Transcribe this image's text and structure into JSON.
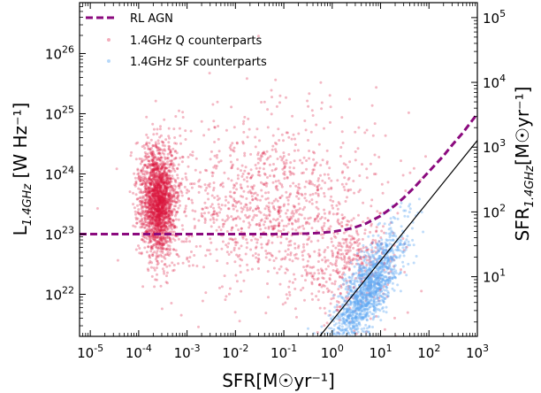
{
  "chart_data": {
    "type": "scatter",
    "xlabel": "SFR[M☉yr⁻¹]",
    "ylabel_main": "L",
    "ylabel_sub": "1.4GHz",
    "ylabel_units": " [W Hz⁻¹]",
    "y2label_main": "SFR",
    "y2label_sub": "1.4GHz",
    "y2label_units": "[M☉yr⁻¹]",
    "x_scale": "log",
    "y_scale": "log",
    "xlim": [
      6e-06,
      1000
    ],
    "ylim": [
      2e+21,
      7e+26
    ],
    "y2lim": [
      1.2,
      170000
    ],
    "grid": false,
    "legend_position": "top-left",
    "colors": {
      "agn": "#8b0a7e",
      "quiescent": "#dc143c",
      "star_forming": "#5ea8f2",
      "relation": "#000000"
    },
    "x_ticks": [
      {
        "value": 1e-05,
        "base": "10",
        "exp": "-5"
      },
      {
        "value": 0.0001,
        "base": "10",
        "exp": "-4"
      },
      {
        "value": 0.001,
        "base": "10",
        "exp": "-3"
      },
      {
        "value": 0.01,
        "base": "10",
        "exp": "-2"
      },
      {
        "value": 0.1,
        "base": "10",
        "exp": "-1"
      },
      {
        "value": 1.0,
        "base": "10",
        "exp": "0"
      },
      {
        "value": 10.0,
        "base": "10",
        "exp": "1"
      },
      {
        "value": 100.0,
        "base": "10",
        "exp": "2"
      },
      {
        "value": 1000.0,
        "base": "10",
        "exp": "3"
      }
    ],
    "y_ticks": [
      {
        "value": 1e+22,
        "base": "10",
        "exp": "22"
      },
      {
        "value": 1e+23,
        "base": "10",
        "exp": "23"
      },
      {
        "value": 1e+24,
        "base": "10",
        "exp": "24"
      },
      {
        "value": 1e+25,
        "base": "10",
        "exp": "25"
      },
      {
        "value": 1e+26,
        "base": "10",
        "exp": "26"
      }
    ],
    "y2_ticks": [
      {
        "value": 10.0,
        "base": "10",
        "exp": "1"
      },
      {
        "value": 100.0,
        "base": "10",
        "exp": "2"
      },
      {
        "value": 1000.0,
        "base": "10",
        "exp": "3"
      },
      {
        "value": 10000.0,
        "base": "10",
        "exp": "4"
      },
      {
        "value": 100000.0,
        "base": "10",
        "exp": "5"
      }
    ],
    "series": [
      {
        "name": "RL AGN",
        "kind": "dashed-line",
        "x": [
          6e-06,
          1e-05,
          0.0001,
          0.001,
          0.01,
          0.1,
          0.3,
          0.5,
          1,
          2,
          3,
          5,
          10,
          20,
          30,
          50,
          100,
          200,
          300,
          500,
          1000
        ],
        "y": [
          1e+23,
          1e+23,
          1e+23,
          1e+23,
          1e+23,
          1e+23,
          1.02e+23,
          1.04e+23,
          1.09e+23,
          1.2e+23,
          1.3e+23,
          1.5e+23,
          2e+23,
          3e+23,
          4e+23,
          6e+23,
          1.1e+24,
          2e+24,
          3e+24,
          4.8e+24,
          1e+25
        ]
      },
      {
        "name": "1.4GHz Q counterparts",
        "kind": "points",
        "description_of_distribution": "dense cloud",
        "clusters": [
          {
            "count": 2000,
            "log_x_mean": -3.6,
            "log_x_sd": 0.18,
            "log_y_mean": 23.55,
            "log_y_sd": 0.45
          },
          {
            "count": 1100,
            "log_x_mean": -1.3,
            "log_x_sd": 1.15,
            "log_y_mean": 23.55,
            "log_y_sd": 0.75
          },
          {
            "count": 350,
            "log_x_mean": 0.4,
            "log_x_sd": 0.5,
            "log_y_mean": 22.5,
            "log_y_sd": 0.45
          }
        ],
        "seed": 17
      },
      {
        "name": "1.4GHz SF counterparts",
        "kind": "points",
        "relation": {
          "log_y_at_log_x0": 21.35,
          "slope": 1.0,
          "log_x_mean": 0.75,
          "log_x_sd": 0.38,
          "scatter": 0.32
        },
        "count": 1300,
        "seed": 91
      },
      {
        "name": "",
        "kind": "solid-line",
        "x": [
          0.55,
          1000
        ],
        "y": [
          2e+21,
          3.6e+24
        ]
      }
    ]
  }
}
